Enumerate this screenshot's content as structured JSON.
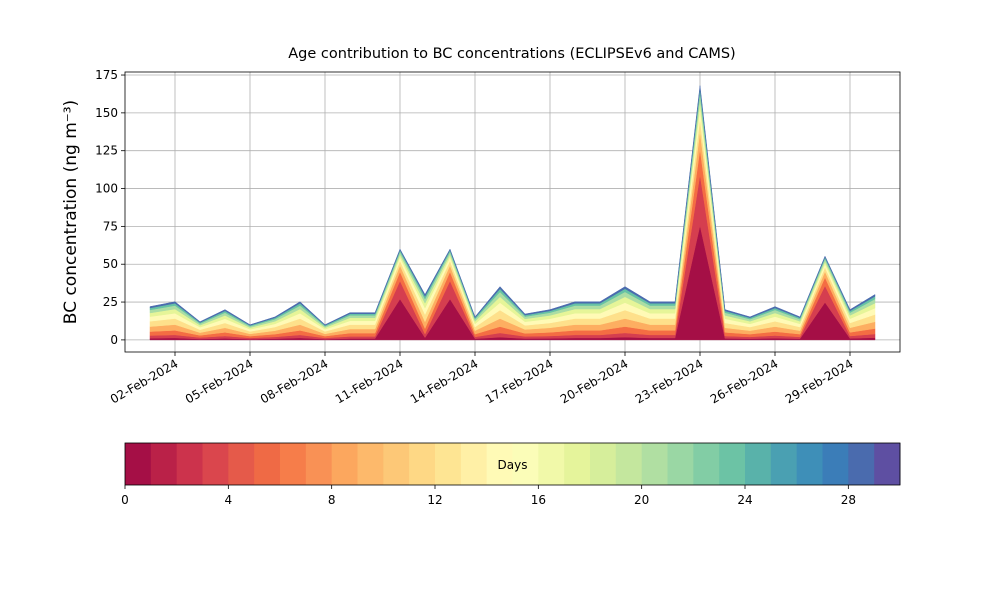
{
  "chart_data": {
    "type": "stacked_area",
    "title": "Age contribution to BC concentrations (ECLIPSEv6 and CAMS)",
    "y_label": "BC concentration (ng m⁻³)",
    "grid": true,
    "x": [
      "2024-02-01",
      "2024-02-02",
      "2024-02-03",
      "2024-02-04",
      "2024-02-05",
      "2024-02-06",
      "2024-02-07",
      "2024-02-08",
      "2024-02-09",
      "2024-02-10",
      "2024-02-11",
      "2024-02-12",
      "2024-02-13",
      "2024-02-14",
      "2024-02-15",
      "2024-02-16",
      "2024-02-17",
      "2024-02-18",
      "2024-02-19",
      "2024-02-20",
      "2024-02-21",
      "2024-02-22",
      "2024-02-23",
      "2024-02-24",
      "2024-02-25",
      "2024-02-26",
      "2024-02-27",
      "2024-02-28",
      "2024-02-29",
      "2024-03-01"
    ],
    "xlim": [
      "2024-01-31",
      "2024-03-02"
    ],
    "xticks": [
      {
        "value": "2024-02-02",
        "label": "02-Feb-2024"
      },
      {
        "value": "2024-02-05",
        "label": "05-Feb-2024"
      },
      {
        "value": "2024-02-08",
        "label": "08-Feb-2024"
      },
      {
        "value": "2024-02-11",
        "label": "11-Feb-2024"
      },
      {
        "value": "2024-02-14",
        "label": "14-Feb-2024"
      },
      {
        "value": "2024-02-17",
        "label": "17-Feb-2024"
      },
      {
        "value": "2024-02-20",
        "label": "20-Feb-2024"
      },
      {
        "value": "2024-02-23",
        "label": "23-Feb-2024"
      },
      {
        "value": "2024-02-26",
        "label": "26-Feb-2024"
      },
      {
        "value": "2024-02-29",
        "label": "29-Feb-2024"
      }
    ],
    "ylim": [
      -8,
      177
    ],
    "yticks": [
      0,
      25,
      50,
      75,
      100,
      125,
      150,
      175
    ],
    "series": [
      {
        "color": "#a50f46",
        "values": [
          1.1,
          1.3,
          0.6,
          1.0,
          0.5,
          0.8,
          1.3,
          0.5,
          0.9,
          0.9,
          27,
          1.5,
          27,
          0.8,
          1.8,
          0.9,
          1.0,
          1.3,
          1.3,
          1.8,
          1.3,
          1.3,
          75.6,
          1.0,
          0.8,
          1.1,
          0.8,
          24.8,
          1.0,
          1.5
        ]
      },
      {
        "color": "#d53e4f",
        "values": [
          1.8,
          2.0,
          1.0,
          1.6,
          0.8,
          1.2,
          2.0,
          0.8,
          1.4,
          1.4,
          12,
          2.4,
          12,
          1.2,
          2.8,
          1.4,
          1.6,
          2.0,
          2.0,
          2.8,
          2.0,
          2.0,
          33.6,
          1.6,
          1.2,
          1.8,
          1.2,
          11,
          1.6,
          2.4
        ]
      },
      {
        "color": "#f46d43",
        "values": [
          2.6,
          3.0,
          1.4,
          2.4,
          1.2,
          1.8,
          3.0,
          1.2,
          2.2,
          2.2,
          6,
          3.6,
          6,
          1.8,
          4.2,
          2.0,
          2.4,
          3.0,
          3.0,
          4.2,
          3.0,
          3.0,
          16.8,
          2.4,
          1.8,
          2.6,
          1.8,
          5.5,
          2.4,
          3.6
        ]
      },
      {
        "color": "#fdae61",
        "values": [
          3.3,
          3.8,
          1.8,
          3.0,
          1.5,
          2.3,
          3.8,
          1.5,
          2.7,
          2.7,
          4.2,
          4.5,
          4.2,
          2.3,
          5.3,
          2.6,
          3.0,
          3.8,
          3.8,
          5.3,
          3.8,
          3.8,
          11.8,
          3.0,
          2.3,
          3.3,
          2.3,
          3.9,
          3.0,
          4.5
        ]
      },
      {
        "color": "#fee08b",
        "values": [
          3.5,
          4.0,
          1.9,
          3.2,
          1.6,
          2.4,
          4.0,
          1.6,
          2.9,
          2.9,
          3,
          4.8,
          3,
          2.4,
          5.6,
          2.7,
          3.2,
          4.0,
          4.0,
          5.6,
          4.0,
          4.0,
          8.4,
          3.2,
          2.4,
          3.5,
          2.4,
          2.8,
          3.2,
          4.8
        ]
      },
      {
        "color": "#fffab6",
        "values": [
          3.1,
          3.5,
          1.7,
          2.8,
          1.4,
          2.1,
          3.5,
          1.4,
          2.5,
          2.5,
          2.4,
          4.2,
          2.4,
          2.1,
          4.9,
          2.4,
          2.8,
          3.5,
          3.5,
          4.9,
          3.5,
          3.5,
          6.7,
          2.8,
          2.1,
          3.1,
          2.1,
          2.2,
          2.8,
          4.2
        ]
      },
      {
        "color": "#e6f598",
        "values": [
          2.4,
          2.8,
          1.3,
          2.2,
          1.1,
          1.7,
          2.8,
          1.1,
          2.0,
          2.0,
          1.8,
          3.3,
          1.8,
          1.7,
          3.9,
          1.9,
          2.2,
          2.8,
          2.8,
          3.9,
          2.8,
          2.8,
          5.0,
          2.2,
          1.7,
          2.4,
          1.7,
          1.7,
          2.2,
          3.3
        ]
      },
      {
        "color": "#abdda4",
        "values": [
          2.0,
          2.3,
          1.1,
          1.8,
          0.9,
          1.4,
          2.3,
          0.9,
          1.6,
          1.6,
          1.8,
          2.7,
          1.8,
          1.4,
          3.2,
          1.5,
          1.8,
          2.3,
          2.3,
          3.2,
          2.3,
          2.3,
          5.0,
          1.8,
          1.4,
          2.0,
          1.4,
          1.7,
          1.8,
          2.7
        ]
      },
      {
        "color": "#66c2a5",
        "values": [
          1.3,
          1.5,
          0.7,
          1.2,
          0.6,
          0.9,
          1.5,
          0.6,
          1.1,
          1.1,
          1.2,
          1.8,
          1.2,
          0.9,
          2.1,
          1.0,
          1.2,
          1.5,
          1.5,
          2.1,
          1.5,
          1.5,
          3.4,
          1.2,
          0.9,
          1.3,
          0.9,
          1.1,
          1.2,
          1.8
        ]
      },
      {
        "color": "#4a6bae",
        "values": [
          0.9,
          1.0,
          0.5,
          0.8,
          0.4,
          0.6,
          1.0,
          0.4,
          0.7,
          0.7,
          0.6,
          1.2,
          0.6,
          0.6,
          1.4,
          0.7,
          0.8,
          1.0,
          1.0,
          1.4,
          1.0,
          1.0,
          1.7,
          0.8,
          0.6,
          0.9,
          0.6,
          0.6,
          0.8,
          1.2
        ]
      }
    ],
    "colorbar": {
      "label": "Days",
      "lim": [
        0,
        30
      ],
      "ticks": [
        0,
        4,
        8,
        12,
        16,
        20,
        24,
        28
      ],
      "colors": [
        "#a50f46",
        "#ba2148",
        "#cc334c",
        "#da464d",
        "#e55a4a",
        "#ef6a45",
        "#f67d4a",
        "#f99155",
        "#fca75e",
        "#fdb96b",
        "#fdc877",
        "#fed885",
        "#fee593",
        "#fff0a6",
        "#fffab6",
        "#fbfdb8",
        "#f1f9a9",
        "#e5f49b",
        "#d6ee9b",
        "#c4e79e",
        "#b0dfa2",
        "#9ad7a4",
        "#82cda5",
        "#6cc3a5",
        "#59b2aa",
        "#4aa0b2",
        "#3e8fb8",
        "#3b7db8",
        "#4a6bae",
        "#5e4fa2"
      ]
    }
  }
}
